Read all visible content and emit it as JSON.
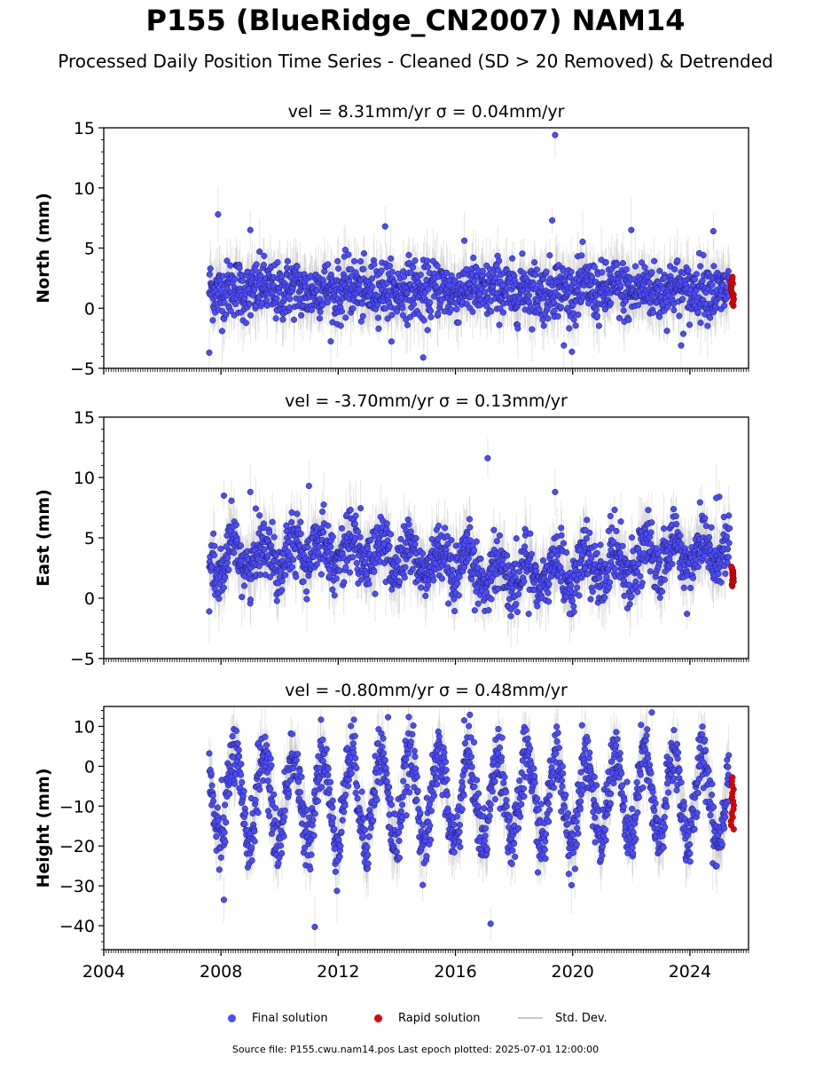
{
  "title": "P155 (BlueRidge_CN2007) NAM14",
  "subtitle": "Processed Daily Position Time Series - Cleaned (SD > 20 Removed) & Detrended",
  "legend": {
    "final": "Final solution",
    "rapid": "Rapid solution",
    "std": "Std. Dev."
  },
  "footer": "Source file: P155.cwu.nam14.pos  Last epoch plotted: 2025-07-01 12:00:00",
  "colors": {
    "final": "#4b4bff",
    "rapid": "#e60000",
    "std": "#b4b4b4",
    "edge": "#1a1a4a"
  },
  "chart_data": [
    {
      "type": "scatter",
      "title": "vel = 8.31mm/yr   σ = 0.04mm/yr",
      "ylabel": "North (mm)",
      "xlim": [
        2004,
        2026
      ],
      "ylim": [
        -5,
        15
      ],
      "yticks": [
        -5,
        0,
        5,
        10,
        15
      ],
      "xticks": [
        2004,
        2008,
        2012,
        2016,
        2020,
        2024
      ],
      "x_tick_labels_shown": false,
      "series": [
        {
          "name": "Final solution",
          "x_range": [
            2007.6,
            2025.35
          ],
          "approx_values": {
            "mean": 1.5,
            "amplitude": 0.3,
            "noise": 1.2
          },
          "outliers": [
            [
              2007.9,
              7.8
            ],
            [
              2019.4,
              14.4
            ],
            [
              2014.9,
              -4.1
            ],
            [
              2007.6,
              -3.7
            ],
            [
              2019.3,
              7.3
            ],
            [
              2013.6,
              6.8
            ],
            [
              2009.0,
              6.5
            ],
            [
              2022.0,
              6.5
            ],
            [
              2024.8,
              6.4
            ],
            [
              2023.7,
              -3.1
            ],
            [
              2019.7,
              -3.1
            ]
          ]
        },
        {
          "name": "Rapid solution",
          "x_range": [
            2025.4,
            2025.5
          ],
          "values_range": [
            0.2,
            2.6
          ]
        }
      ]
    },
    {
      "type": "scatter",
      "title": "vel = -3.70mm/yr   σ = 0.13mm/yr",
      "ylabel": "East (mm)",
      "xlim": [
        2004,
        2026
      ],
      "ylim": [
        -5,
        15
      ],
      "yticks": [
        -5,
        0,
        5,
        10,
        15
      ],
      "xticks": [
        2004,
        2008,
        2012,
        2016,
        2020,
        2024
      ],
      "x_tick_labels_shown": false,
      "series": [
        {
          "name": "Final solution",
          "x_range": [
            2007.6,
            2025.35
          ],
          "approx_values": {
            "mean": 3.0,
            "amplitude": 1.2,
            "noise": 1.2
          },
          "outliers": [
            [
              2017.1,
              11.6
            ],
            [
              2011.0,
              9.3
            ],
            [
              2019.4,
              8.8
            ],
            [
              2008.1,
              8.5
            ],
            [
              2025.0,
              8.4
            ],
            [
              2024.9,
              8.3
            ],
            [
              2009.0,
              8.8
            ],
            [
              2007.6,
              -1.1
            ],
            [
              2019.9,
              -1.3
            ],
            [
              2018.5,
              -1.3
            ],
            [
              2023.9,
              -1.3
            ]
          ]
        },
        {
          "name": "Rapid solution",
          "x_range": [
            2025.4,
            2025.5
          ],
          "values_range": [
            1.0,
            2.6
          ]
        }
      ]
    },
    {
      "type": "scatter",
      "title": "vel = -0.80mm/yr   σ = 0.48mm/yr",
      "ylabel": "Height (mm)",
      "xlim": [
        2004,
        2026
      ],
      "ylim": [
        -46,
        15
      ],
      "yticks": [
        -40,
        -30,
        -20,
        -10,
        0,
        10
      ],
      "xticks": [
        2004,
        2008,
        2012,
        2016,
        2020,
        2024
      ],
      "x_tick_labels": [
        "2004",
        "2008",
        "2012",
        "2016",
        "2020",
        "2024"
      ],
      "x_tick_labels_shown": true,
      "series": [
        {
          "name": "Final solution",
          "x_range": [
            2007.6,
            2025.35
          ],
          "approx_values": {
            "mean": -8,
            "amplitude": 11,
            "noise": 4
          },
          "outliers": [
            [
              2011.2,
              -40.3
            ],
            [
              2017.2,
              -39.5
            ],
            [
              2022.7,
              13.5
            ],
            [
              2013.7,
              12.3
            ],
            [
              2008.1,
              -33.5
            ],
            [
              2016.3,
              11.5
            ]
          ]
        },
        {
          "name": "Rapid solution",
          "x_range": [
            2025.4,
            2025.5
          ],
          "values_range": [
            -15.8,
            -2.8
          ]
        }
      ]
    }
  ]
}
